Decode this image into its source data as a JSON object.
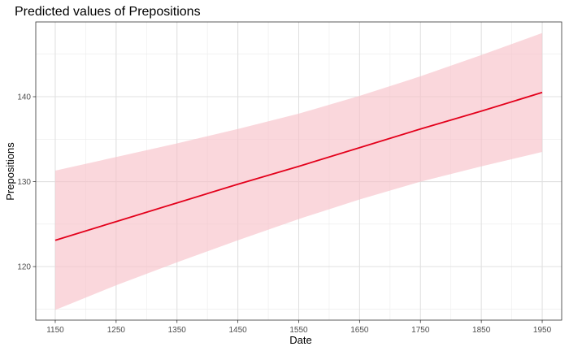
{
  "chart_data": {
    "type": "line",
    "title": "Predicted values of Prepositions",
    "xlabel": "Date",
    "ylabel": "Prepositions",
    "xlim": [
      1118,
      1982
    ],
    "ylim": [
      113.7,
      148.8
    ],
    "x_ticks": [
      1150,
      1250,
      1350,
      1450,
      1550,
      1650,
      1750,
      1850,
      1950
    ],
    "y_ticks": [
      120,
      130,
      140
    ],
    "grid": true,
    "series": [
      {
        "name": "Prepositions",
        "color": "#e3001b",
        "ribbon_color": "#f7c1c9",
        "x": [
          1150,
          1250,
          1350,
          1450,
          1550,
          1650,
          1750,
          1850,
          1950
        ],
        "values": [
          123.1,
          125.3,
          127.5,
          129.7,
          131.8,
          134.0,
          136.2,
          138.3,
          140.5
        ],
        "ci_lower": [
          114.9,
          117.8,
          120.5,
          123.1,
          125.6,
          127.9,
          130.0,
          131.8,
          133.5
        ],
        "ci_upper": [
          131.3,
          132.9,
          134.5,
          136.2,
          138.0,
          140.1,
          142.4,
          144.9,
          147.5
        ]
      }
    ]
  }
}
